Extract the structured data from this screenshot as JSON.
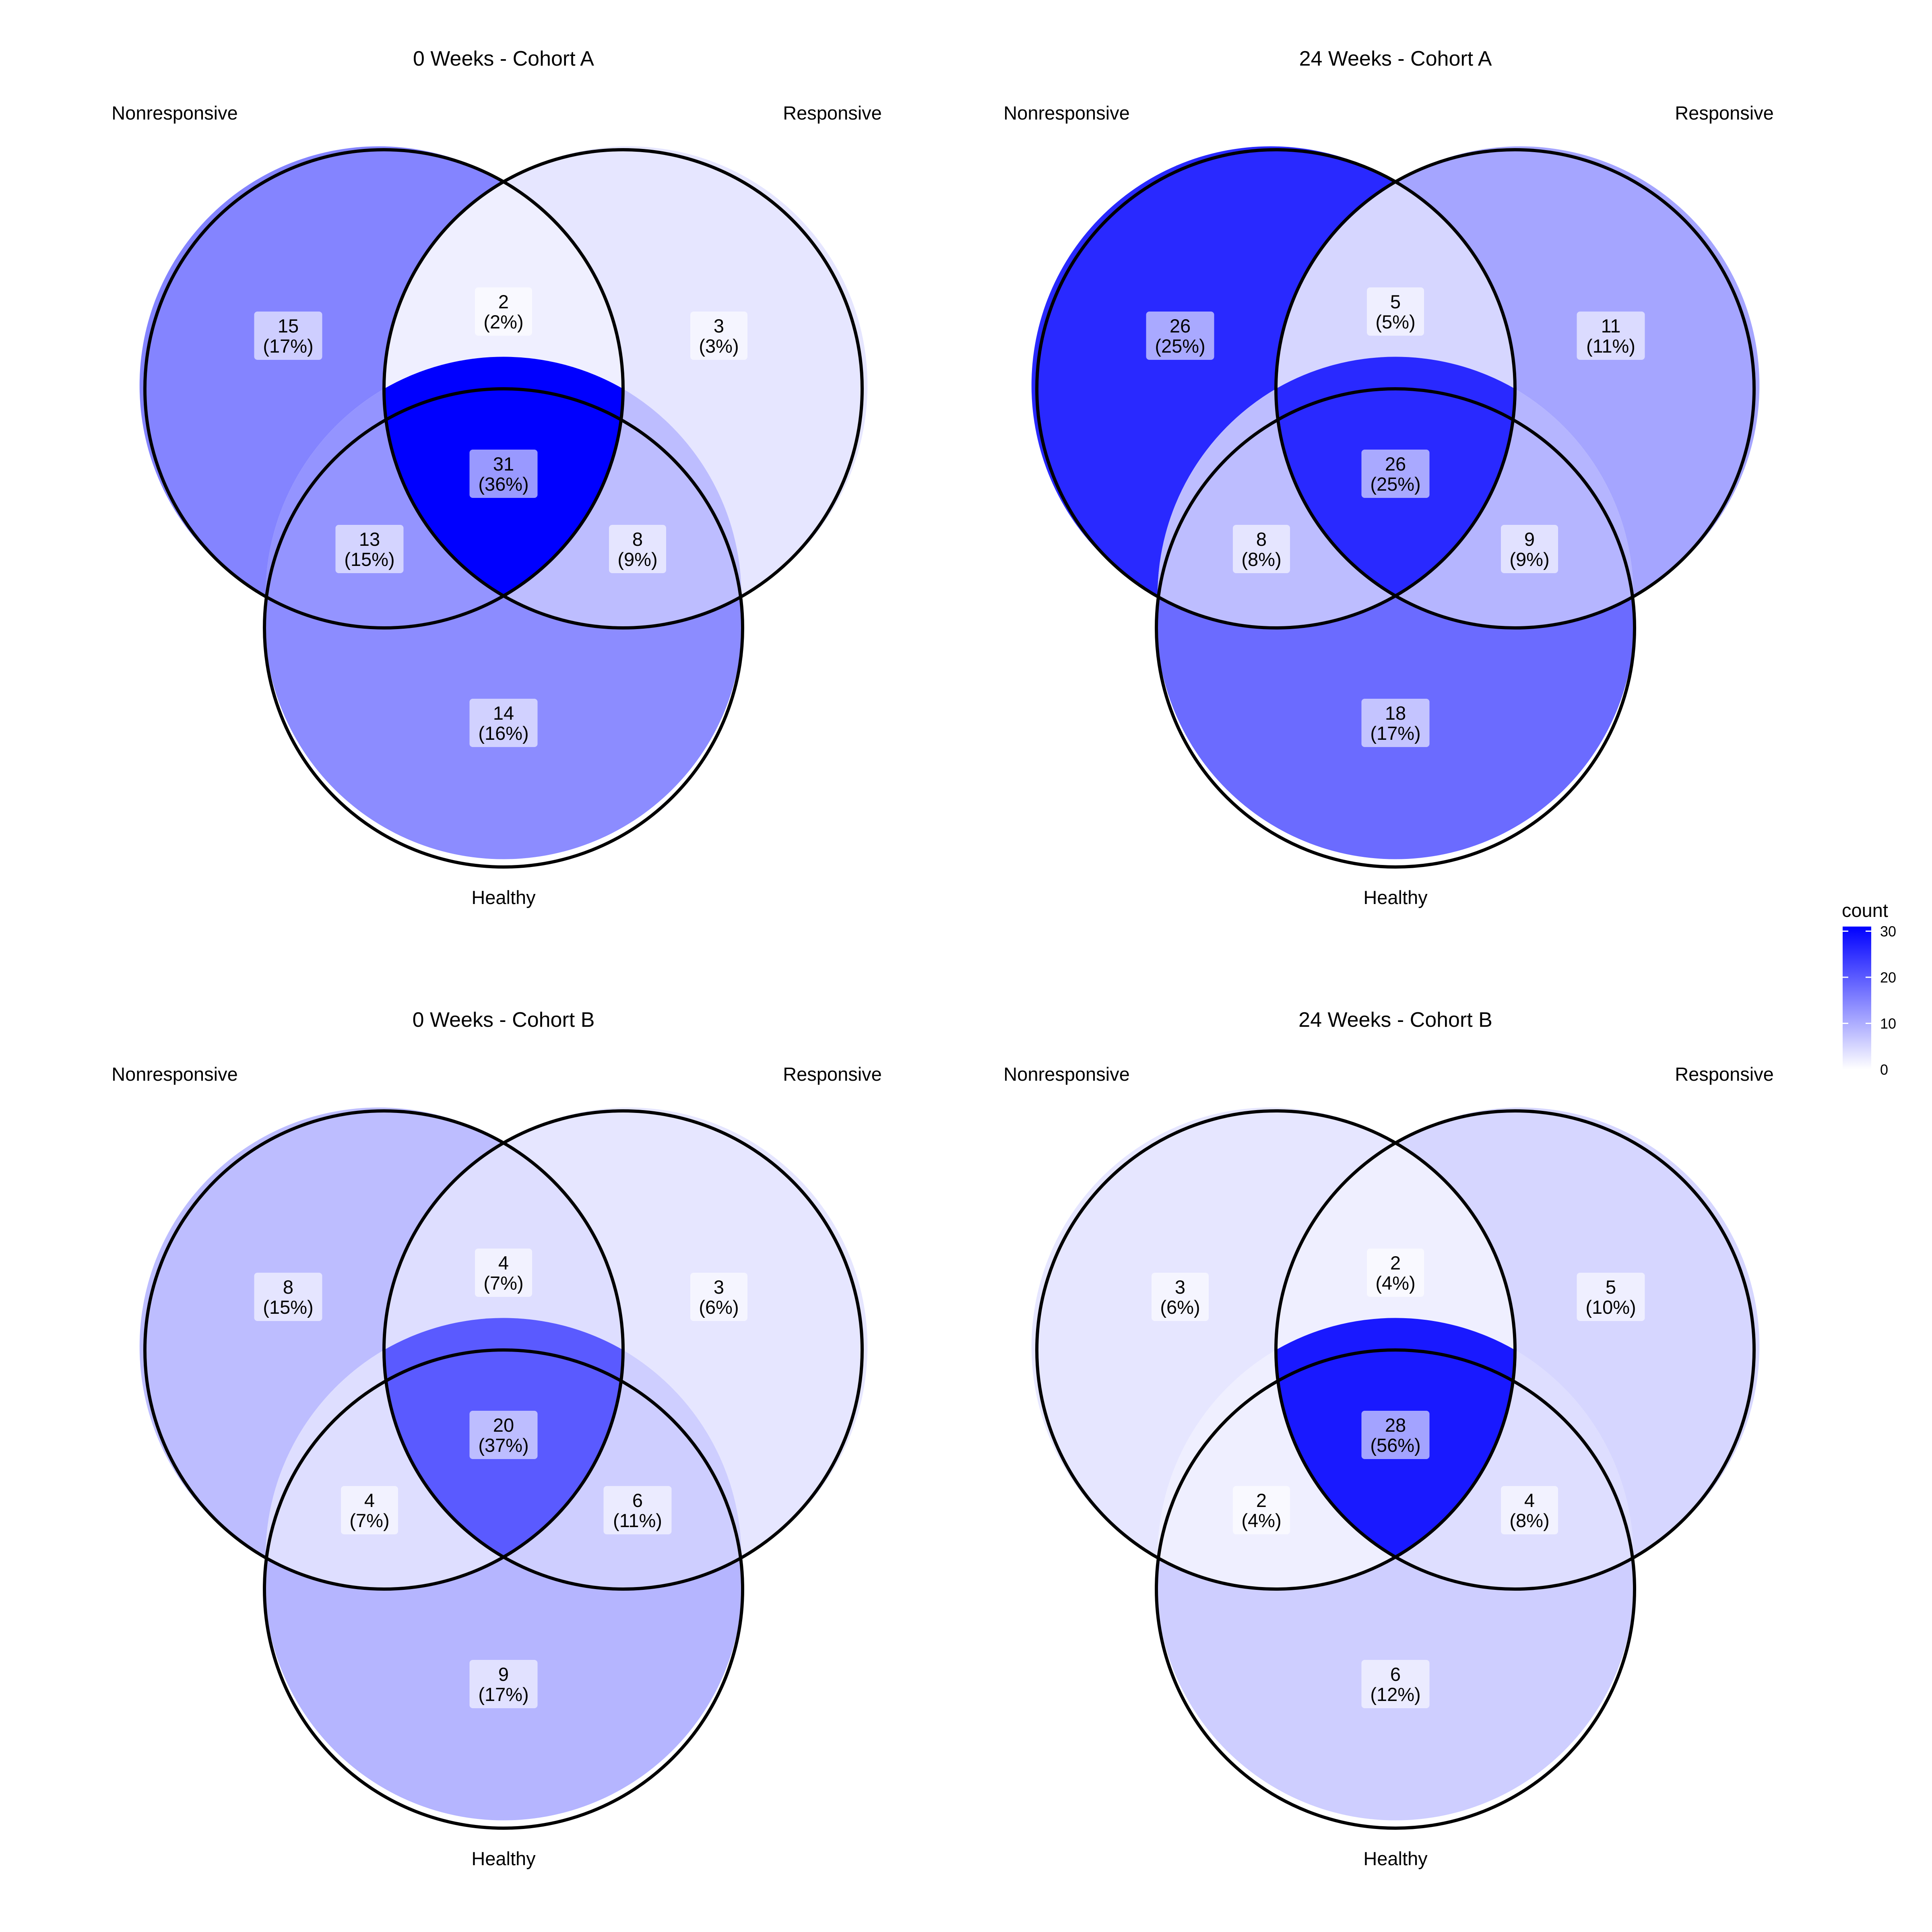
{
  "legend": {
    "title": "count",
    "min": 0,
    "max": 31,
    "ticks": [
      0,
      10,
      20,
      30
    ],
    "tick_labels": [
      "0",
      "10",
      "20",
      "30"
    ],
    "low_color": "#ffffff",
    "high_color": "#0000ff"
  },
  "panels": [
    {
      "title": "0 Weeks - Cohort A",
      "set_labels": {
        "a": "Nonresponsive",
        "b": "Responsive",
        "c": "Healthy"
      },
      "regions": {
        "a_only": {
          "count": "15",
          "pct": "(17%)",
          "value": 15
        },
        "ab_only": {
          "count": "2",
          "pct": "(2%)",
          "value": 2
        },
        "b_only": {
          "count": "3",
          "pct": "(3%)",
          "value": 3
        },
        "abc": {
          "count": "31",
          "pct": "(36%)",
          "value": 31
        },
        "ac_only": {
          "count": "13",
          "pct": "(15%)",
          "value": 13
        },
        "bc_only": {
          "count": "8",
          "pct": "(9%)",
          "value": 8
        },
        "c_only": {
          "count": "14",
          "pct": "(16%)",
          "value": 14
        }
      }
    },
    {
      "title": "24 Weeks - Cohort A",
      "set_labels": {
        "a": "Nonresponsive",
        "b": "Responsive",
        "c": "Healthy"
      },
      "regions": {
        "a_only": {
          "count": "26",
          "pct": "(25%)",
          "value": 26
        },
        "ab_only": {
          "count": "5",
          "pct": "(5%)",
          "value": 5
        },
        "b_only": {
          "count": "11",
          "pct": "(11%)",
          "value": 11
        },
        "abc": {
          "count": "26",
          "pct": "(25%)",
          "value": 26
        },
        "ac_only": {
          "count": "8",
          "pct": "(8%)",
          "value": 8
        },
        "bc_only": {
          "count": "9",
          "pct": "(9%)",
          "value": 9
        },
        "c_only": {
          "count": "18",
          "pct": "(17%)",
          "value": 18
        }
      }
    },
    {
      "title": "0 Weeks - Cohort B",
      "set_labels": {
        "a": "Nonresponsive",
        "b": "Responsive",
        "c": "Healthy"
      },
      "regions": {
        "a_only": {
          "count": "8",
          "pct": "(15%)",
          "value": 8
        },
        "ab_only": {
          "count": "4",
          "pct": "(7%)",
          "value": 4
        },
        "b_only": {
          "count": "3",
          "pct": "(6%)",
          "value": 3
        },
        "abc": {
          "count": "20",
          "pct": "(37%)",
          "value": 20
        },
        "ac_only": {
          "count": "4",
          "pct": "(7%)",
          "value": 4
        },
        "bc_only": {
          "count": "6",
          "pct": "(11%)",
          "value": 6
        },
        "c_only": {
          "count": "9",
          "pct": "(17%)",
          "value": 9
        }
      }
    },
    {
      "title": "24 Weeks - Cohort B",
      "set_labels": {
        "a": "Nonresponsive",
        "b": "Responsive",
        "c": "Healthy"
      },
      "regions": {
        "a_only": {
          "count": "3",
          "pct": "(6%)",
          "value": 3
        },
        "ab_only": {
          "count": "2",
          "pct": "(4%)",
          "value": 2
        },
        "b_only": {
          "count": "5",
          "pct": "(10%)",
          "value": 5
        },
        "abc": {
          "count": "28",
          "pct": "(56%)",
          "value": 28
        },
        "ac_only": {
          "count": "2",
          "pct": "(4%)",
          "value": 2
        },
        "bc_only": {
          "count": "4",
          "pct": "(8%)",
          "value": 4
        },
        "c_only": {
          "count": "6",
          "pct": "(12%)",
          "value": 6
        }
      }
    }
  ]
}
